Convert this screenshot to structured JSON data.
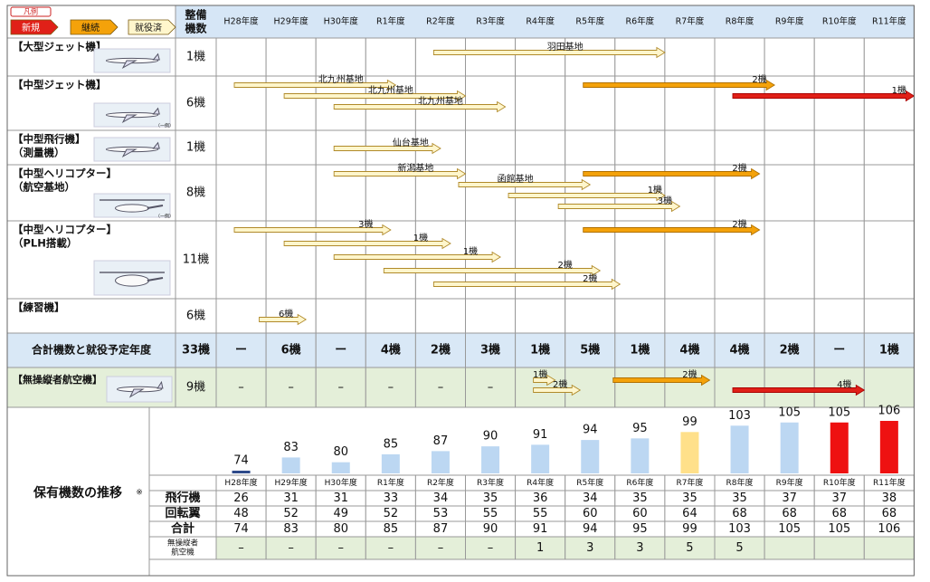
{
  "legend": {
    "title": "凡例",
    "items": [
      {
        "label": "新規",
        "color": "#e02018"
      },
      {
        "label": "継続",
        "color": "#f4a20a"
      },
      {
        "label": "就役済",
        "color": "#fff6cc"
      }
    ]
  },
  "header": {
    "count_label": "整備\n機数",
    "years": [
      "H28年度",
      "H29年度",
      "H30年度",
      "R1年度",
      "R2年度",
      "R3年度",
      "R4年度",
      "R5年度",
      "R6年度",
      "R7年度",
      "R8年度",
      "R9年度",
      "R10年度",
      "R11年度"
    ]
  },
  "rows": [
    {
      "name": "【大型ジェット機】",
      "count": "1機",
      "photo": "large-jet-photo",
      "bars": [
        {
          "start": 4,
          "end": 9,
          "type": "done",
          "label": "羽田基地",
          "label_at": 7.0,
          "lane": 0
        }
      ]
    },
    {
      "name": "【中型ジェット機】",
      "count": "6機",
      "photo": "mid-jet-photo",
      "note": "（一例）",
      "bars": [
        {
          "start": 0,
          "end": 3.6,
          "type": "done",
          "label": "北九州基地",
          "label_at": 2.5,
          "lane": 0
        },
        {
          "start": 1,
          "end": 5.0,
          "type": "done",
          "label": "北九州基地",
          "label_at": 3.5,
          "lane": 1
        },
        {
          "start": 2,
          "end": 5.8,
          "type": "done",
          "label": "北九州基地",
          "label_at": 4.5,
          "lane": 2
        },
        {
          "start": 7,
          "end": 11.2,
          "type": "cont",
          "label": "2機",
          "label_at": 10.9,
          "lane": 0
        },
        {
          "start": 10,
          "end": 14,
          "type": "new",
          "label": "1機",
          "label_at": 13.7,
          "lane": 1
        }
      ]
    },
    {
      "name": "【中型飛行機】\n（測量機）",
      "count": "1機",
      "photo": "survey-plane-photo",
      "bars": [
        {
          "start": 2,
          "end": 4.5,
          "type": "done",
          "label": "仙台基地",
          "label_at": 3.9,
          "lane": 0
        }
      ]
    },
    {
      "name": "【中型ヘリコプター】\n（航空基地）",
      "count": "8機",
      "photo": "mid-heli-photo",
      "note": "（一例）",
      "bars": [
        {
          "start": 2,
          "end": 5.0,
          "type": "done",
          "label": "新潟基地",
          "label_at": 4.0,
          "lane": 0
        },
        {
          "start": 4.5,
          "end": 7.5,
          "type": "done",
          "label": "函館基地",
          "label_at": 6.0,
          "lane": 1
        },
        {
          "start": 5.5,
          "end": 9.0,
          "type": "done",
          "label": "1機",
          "label_at": 8.8,
          "lane": 2
        },
        {
          "start": 6.5,
          "end": 9.3,
          "type": "done",
          "label": "3機",
          "label_at": 9.0,
          "lane": 3
        },
        {
          "start": 7,
          "end": 10.9,
          "type": "cont",
          "label": "2機",
          "label_at": 10.5,
          "lane": 0
        }
      ]
    },
    {
      "name": "【中型ヘリコプター】\n（PLH搭載）",
      "count": "11機",
      "photo": "plh-heli-photo",
      "bars": [
        {
          "start": 0,
          "end": 3.5,
          "type": "done",
          "label": "3機",
          "label_at": 3.0,
          "lane": 0
        },
        {
          "start": 1,
          "end": 4.7,
          "type": "done",
          "label": "1機",
          "label_at": 4.1,
          "lane": 1
        },
        {
          "start": 2,
          "end": 5.7,
          "type": "done",
          "label": "1機",
          "label_at": 5.1,
          "lane": 2
        },
        {
          "start": 3,
          "end": 7.7,
          "type": "done",
          "label": "2機",
          "label_at": 7.0,
          "lane": 3
        },
        {
          "start": 4,
          "end": 8.1,
          "type": "done",
          "label": "2機",
          "label_at": 7.5,
          "lane": 4
        },
        {
          "start": 7,
          "end": 10.9,
          "type": "cont",
          "label": "2機",
          "label_at": 10.5,
          "lane": 0
        }
      ]
    },
    {
      "name": "【練習機】",
      "count": "6機",
      "photo": "",
      "bars": [
        {
          "start": 0.5,
          "end": 1.8,
          "type": "done",
          "label": "6機",
          "label_at": 1.4,
          "lane": 0
        }
      ]
    }
  ],
  "totals": {
    "label": "合計機数と就役予定年度",
    "count": "33機",
    "values": [
      "ー",
      "6機",
      "ー",
      "4機",
      "2機",
      "3機",
      "1機",
      "5機",
      "1機",
      "4機",
      "4機",
      "2機",
      "ー",
      "1機"
    ]
  },
  "drone": {
    "name": "【無操縦者航空機】",
    "count": "9機",
    "values": [
      "–",
      "–",
      "–",
      "–",
      "–",
      "–",
      "",
      "",
      "",
      "",
      "",
      "",
      "",
      ""
    ],
    "bars": [
      {
        "start": 6,
        "end": 6.8,
        "type": "done",
        "label": "1機",
        "label_at": 6.5,
        "lane": 0
      },
      {
        "start": 6,
        "end": 7.3,
        "type": "done",
        "label": "2機",
        "label_at": 6.9,
        "lane": 1
      },
      {
        "start": 7.6,
        "end": 9.9,
        "type": "cont",
        "label": "2機",
        "label_at": 9.5,
        "lane": 0
      },
      {
        "start": 10,
        "end": 13.0,
        "type": "new",
        "label": "4機",
        "label_at": 12.6,
        "lane": 1
      }
    ]
  },
  "fleet": {
    "label": "保有機数の推移",
    "note_mark": "※",
    "chart_data": {
      "type": "bar",
      "categories": [
        "H28年度",
        "H29年度",
        "H30年度",
        "R1年度",
        "R2年度",
        "R3年度",
        "R4年度",
        "R5年度",
        "R6年度",
        "R7年度",
        "R8年度",
        "R9年度",
        "R10年度",
        "R11年度"
      ],
      "values": [
        74,
        83,
        80,
        85,
        87,
        90,
        91,
        94,
        95,
        99,
        103,
        105,
        105,
        106
      ],
      "bar_colors": [
        "#2e4a8a",
        "#bcd7f2",
        "#bcd7f2",
        "#bcd7f2",
        "#bcd7f2",
        "#bcd7f2",
        "#bcd7f2",
        "#bcd7f2",
        "#bcd7f2",
        "#ffe08a",
        "#bcd7f2",
        "#bcd7f2",
        "#ee1111",
        "#ee1111"
      ],
      "ylim": [
        73,
        106
      ]
    },
    "table": {
      "rows": [
        {
          "label": "飛行機",
          "values": [
            "26",
            "31",
            "31",
            "33",
            "34",
            "35",
            "36",
            "34",
            "35",
            "35",
            "35",
            "37",
            "37",
            "38"
          ]
        },
        {
          "label": "回転翼",
          "values": [
            "48",
            "52",
            "49",
            "52",
            "53",
            "55",
            "55",
            "60",
            "60",
            "64",
            "68",
            "68",
            "68",
            "68"
          ]
        },
        {
          "label": "合計",
          "values": [
            "74",
            "83",
            "80",
            "85",
            "87",
            "90",
            "91",
            "94",
            "95",
            "99",
            "103",
            "105",
            "105",
            "106"
          ]
        },
        {
          "label": "無操縦者\n航空機",
          "values": [
            "–",
            "–",
            "–",
            "–",
            "–",
            "–",
            "1",
            "3",
            "3",
            "5",
            "5",
            "",
            "",
            ""
          ]
        }
      ]
    }
  },
  "colors": {
    "header_bg": "#d6e6f6",
    "totals_bg": "#d9e8f6",
    "drone_bg": "#e4efd9",
    "done_fill": "#fff6cc",
    "done_stroke": "#b08a2a",
    "cont": "#f4a20a",
    "new": "#e02018"
  }
}
